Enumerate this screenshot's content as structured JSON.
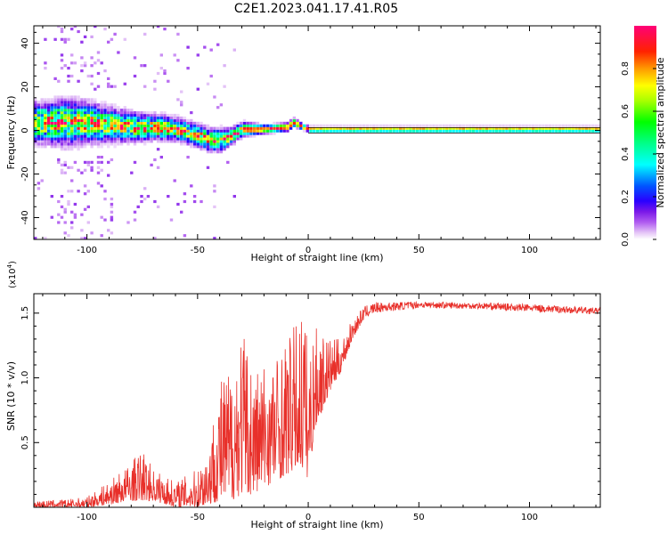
{
  "title": "C2E1.2023.041.17.41.R05",
  "chart_data": [
    {
      "type": "heatmap",
      "title": "",
      "xlabel": "Height of straight line (km)",
      "ylabel": "Frequency (Hz)",
      "xlim": [
        -124,
        132
      ],
      "ylim": [
        -50,
        48
      ],
      "xticks": [
        -100,
        -50,
        0,
        50,
        100
      ],
      "yticks": [
        -40,
        -20,
        0,
        20,
        40
      ],
      "xtick_labels": [
        "-100",
        "-50",
        "0",
        "50",
        "100"
      ],
      "ytick_labels": [
        "-40",
        "-20",
        "0",
        "20",
        "40"
      ],
      "ridge": [
        {
          "x": -120,
          "f": 3,
          "spread": 7
        },
        {
          "x": -110,
          "f": 3,
          "spread": 8
        },
        {
          "x": -100,
          "f": 3,
          "spread": 7
        },
        {
          "x": -90,
          "f": 2,
          "spread": 6
        },
        {
          "x": -80,
          "f": 1,
          "spread": 5
        },
        {
          "x": -70,
          "f": 1,
          "spread": 4.5
        },
        {
          "x": -60,
          "f": 0,
          "spread": 4
        },
        {
          "x": -50,
          "f": -3,
          "spread": 4
        },
        {
          "x": -45,
          "f": -5,
          "spread": 4
        },
        {
          "x": -40,
          "f": -5,
          "spread": 4
        },
        {
          "x": -35,
          "f": -3,
          "spread": 3
        },
        {
          "x": -30,
          "f": 0,
          "spread": 2.5
        },
        {
          "x": -20,
          "f": 0,
          "spread": 1.5
        },
        {
          "x": -10,
          "f": 1,
          "spread": 1.5
        },
        {
          "x": -7,
          "f": 3,
          "spread": 1.5
        },
        {
          "x": -3,
          "f": 1,
          "spread": 1
        },
        {
          "x": 0,
          "f": 0,
          "spread": 1
        },
        {
          "x": 132,
          "f": 0,
          "spread": 1
        }
      ],
      "colorbar": {
        "label": "Normalized spectral amplitude",
        "range": [
          0,
          1
        ],
        "ticks": [
          0.0,
          0.2,
          0.4,
          0.6,
          0.8
        ],
        "tick_labels": [
          "0.0",
          "0.2",
          "0.4",
          "0.6",
          "0.8"
        ]
      }
    },
    {
      "type": "line",
      "title": "",
      "xlabel": "Height of straight line (km)",
      "ylabel": "SNR (10 * v/v)",
      "y_multiplier": "(x10",
      "y_multiplier_exp": "4",
      "y_multiplier_close": ")",
      "xlim": [
        -124,
        132
      ],
      "ylim": [
        0,
        1.65
      ],
      "xticks": [
        -100,
        -50,
        0,
        50,
        100
      ],
      "yticks": [
        0.5,
        1.0,
        1.5
      ],
      "xtick_labels": [
        "-100",
        "-50",
        "0",
        "50",
        "100"
      ],
      "ytick_labels": [
        "0.5",
        "1.0",
        "1.5"
      ],
      "color": "#e8302a",
      "envelope": [
        {
          "x": -124,
          "lo": 0.0,
          "hi": 0.05
        },
        {
          "x": -110,
          "lo": 0.0,
          "hi": 0.06
        },
        {
          "x": -100,
          "lo": 0.0,
          "hi": 0.08
        },
        {
          "x": -90,
          "lo": 0.02,
          "hi": 0.2
        },
        {
          "x": -80,
          "lo": 0.05,
          "hi": 0.35
        },
        {
          "x": -75,
          "lo": 0.05,
          "hi": 0.45
        },
        {
          "x": -70,
          "lo": 0.05,
          "hi": 0.3
        },
        {
          "x": -60,
          "lo": 0.0,
          "hi": 0.2
        },
        {
          "x": -55,
          "lo": 0.0,
          "hi": 0.25
        },
        {
          "x": -50,
          "lo": 0.0,
          "hi": 0.3
        },
        {
          "x": -45,
          "lo": 0.02,
          "hi": 0.5
        },
        {
          "x": -40,
          "lo": 0.05,
          "hi": 1.0
        },
        {
          "x": -35,
          "lo": 0.05,
          "hi": 1.1
        },
        {
          "x": -30,
          "lo": 0.1,
          "hi": 1.45
        },
        {
          "x": -25,
          "lo": 0.1,
          "hi": 1.1
        },
        {
          "x": -20,
          "lo": 0.15,
          "hi": 1.15
        },
        {
          "x": -15,
          "lo": 0.2,
          "hi": 1.2
        },
        {
          "x": -10,
          "lo": 0.25,
          "hi": 1.3
        },
        {
          "x": -5,
          "lo": 0.3,
          "hi": 1.45
        },
        {
          "x": -2,
          "lo": 0.3,
          "hi": 1.65
        },
        {
          "x": 0,
          "lo": 0.2,
          "hi": 1.2
        },
        {
          "x": 3,
          "lo": 0.6,
          "hi": 1.4
        },
        {
          "x": 10,
          "lo": 0.9,
          "hi": 1.3
        },
        {
          "x": 15,
          "lo": 1.05,
          "hi": 1.3
        },
        {
          "x": 20,
          "lo": 1.3,
          "hi": 1.45
        },
        {
          "x": 25,
          "lo": 1.45,
          "hi": 1.55
        },
        {
          "x": 30,
          "lo": 1.5,
          "hi": 1.58
        },
        {
          "x": 50,
          "lo": 1.54,
          "hi": 1.59
        },
        {
          "x": 80,
          "lo": 1.53,
          "hi": 1.58
        },
        {
          "x": 100,
          "lo": 1.51,
          "hi": 1.57
        },
        {
          "x": 132,
          "lo": 1.49,
          "hi": 1.54
        }
      ]
    }
  ]
}
